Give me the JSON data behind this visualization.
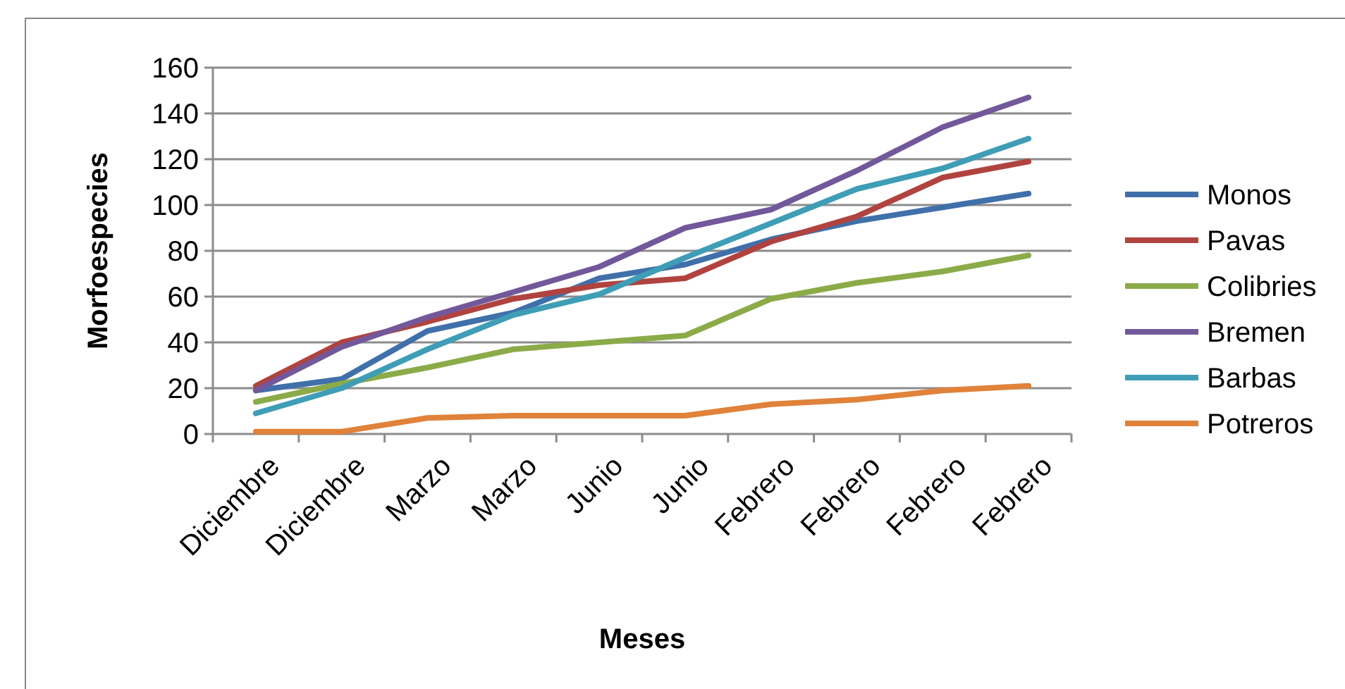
{
  "chart_data": {
    "type": "line",
    "xlabel": "Meses",
    "ylabel": "Morfoespecies",
    "categories": [
      "Diciembre",
      "Diciembre",
      "Marzo",
      "Marzo",
      "Junio",
      "Junio",
      "Febrero",
      "Febrero",
      "Febrero",
      "Febrero"
    ],
    "ylim": [
      0,
      160
    ],
    "yticks": [
      0,
      20,
      40,
      60,
      80,
      100,
      120,
      140,
      160
    ],
    "grid": "y",
    "legend": "right",
    "marker": "none",
    "series": [
      {
        "name": "Monos",
        "color": "#4070aa",
        "values": [
          19,
          24,
          45,
          53,
          68,
          74,
          85,
          93,
          99,
          105
        ]
      },
      {
        "name": "Pavas",
        "color": "#b0433f",
        "values": [
          21,
          40,
          49,
          59,
          65,
          68,
          84,
          95,
          112,
          119
        ]
      },
      {
        "name": "Colibries",
        "color": "#8bab48",
        "values": [
          14,
          22,
          29,
          37,
          40,
          43,
          59,
          66,
          71,
          78
        ]
      },
      {
        "name": "Bremen",
        "color": "#72589a",
        "values": [
          19,
          38,
          51,
          62,
          73,
          90,
          98,
          115,
          134,
          147
        ]
      },
      {
        "name": "Barbas",
        "color": "#3f9db6",
        "values": [
          9,
          20,
          37,
          52,
          61,
          77,
          92,
          107,
          116,
          129
        ]
      },
      {
        "name": "Potreros",
        "color": "#e0823a",
        "values": [
          1,
          1,
          7,
          8,
          8,
          8,
          13,
          15,
          19,
          21
        ]
      }
    ]
  }
}
